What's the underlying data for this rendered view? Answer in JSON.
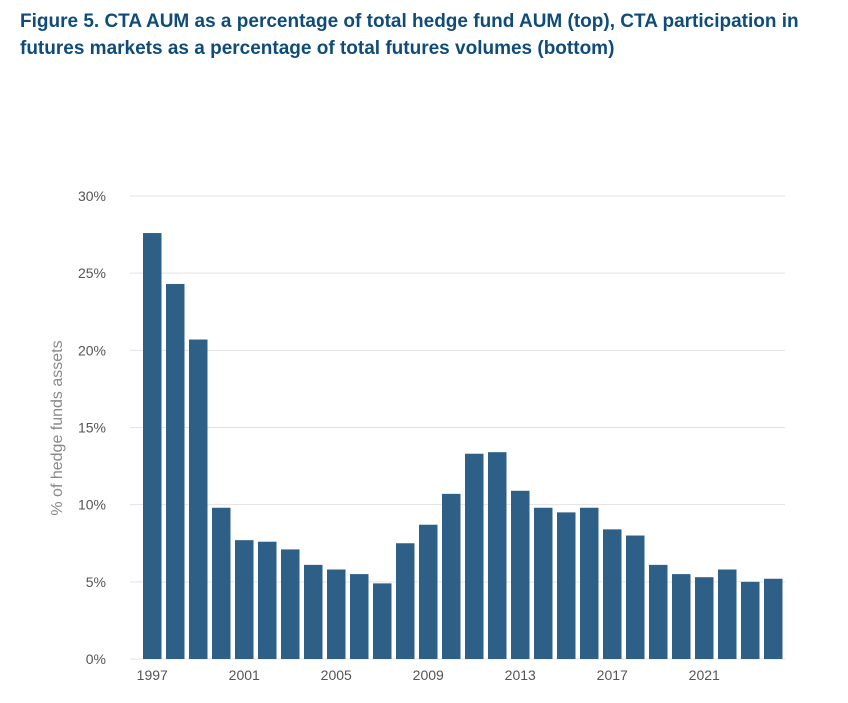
{
  "figure": {
    "title": "Figure 5. CTA AUM as a percentage of total hedge fund AUM (top), CTA participation in futures markets as a percentage of total futures volumes (bottom)"
  },
  "colors": {
    "bar": "#2e5f86",
    "grid": "#e3e3e3",
    "title": "#0f4c7a",
    "tick": "#555555"
  },
  "chart_data": {
    "type": "bar",
    "title": "",
    "xlabel": "",
    "ylabel": "% of hedge funds assets",
    "ylim": [
      0,
      30
    ],
    "yticks": [
      0,
      5,
      10,
      15,
      20,
      25,
      30
    ],
    "ytick_labels": [
      "0%",
      "5%",
      "10%",
      "15%",
      "20%",
      "25%",
      "30%"
    ],
    "xtick_labels": [
      "1997",
      "2001",
      "2005",
      "2009",
      "2013",
      "2017",
      "2021"
    ],
    "categories": [
      "1997",
      "1998",
      "1999",
      "2000",
      "2001",
      "2002",
      "2003",
      "2004",
      "2005",
      "2006",
      "2007",
      "2008",
      "2009",
      "2010",
      "2011",
      "2012",
      "2013",
      "2014",
      "2015",
      "2016",
      "2017",
      "2018",
      "2019",
      "2020",
      "2021",
      "2022",
      "2023",
      "2024"
    ],
    "values": [
      27.6,
      24.3,
      20.7,
      9.8,
      7.7,
      7.6,
      7.1,
      6.1,
      5.8,
      5.5,
      4.9,
      7.5,
      8.7,
      10.7,
      13.3,
      13.4,
      10.9,
      9.8,
      9.5,
      9.8,
      8.4,
      8.0,
      6.1,
      5.5,
      5.3,
      5.8,
      5.0,
      5.2
    ],
    "grid": true,
    "legend": "none"
  }
}
